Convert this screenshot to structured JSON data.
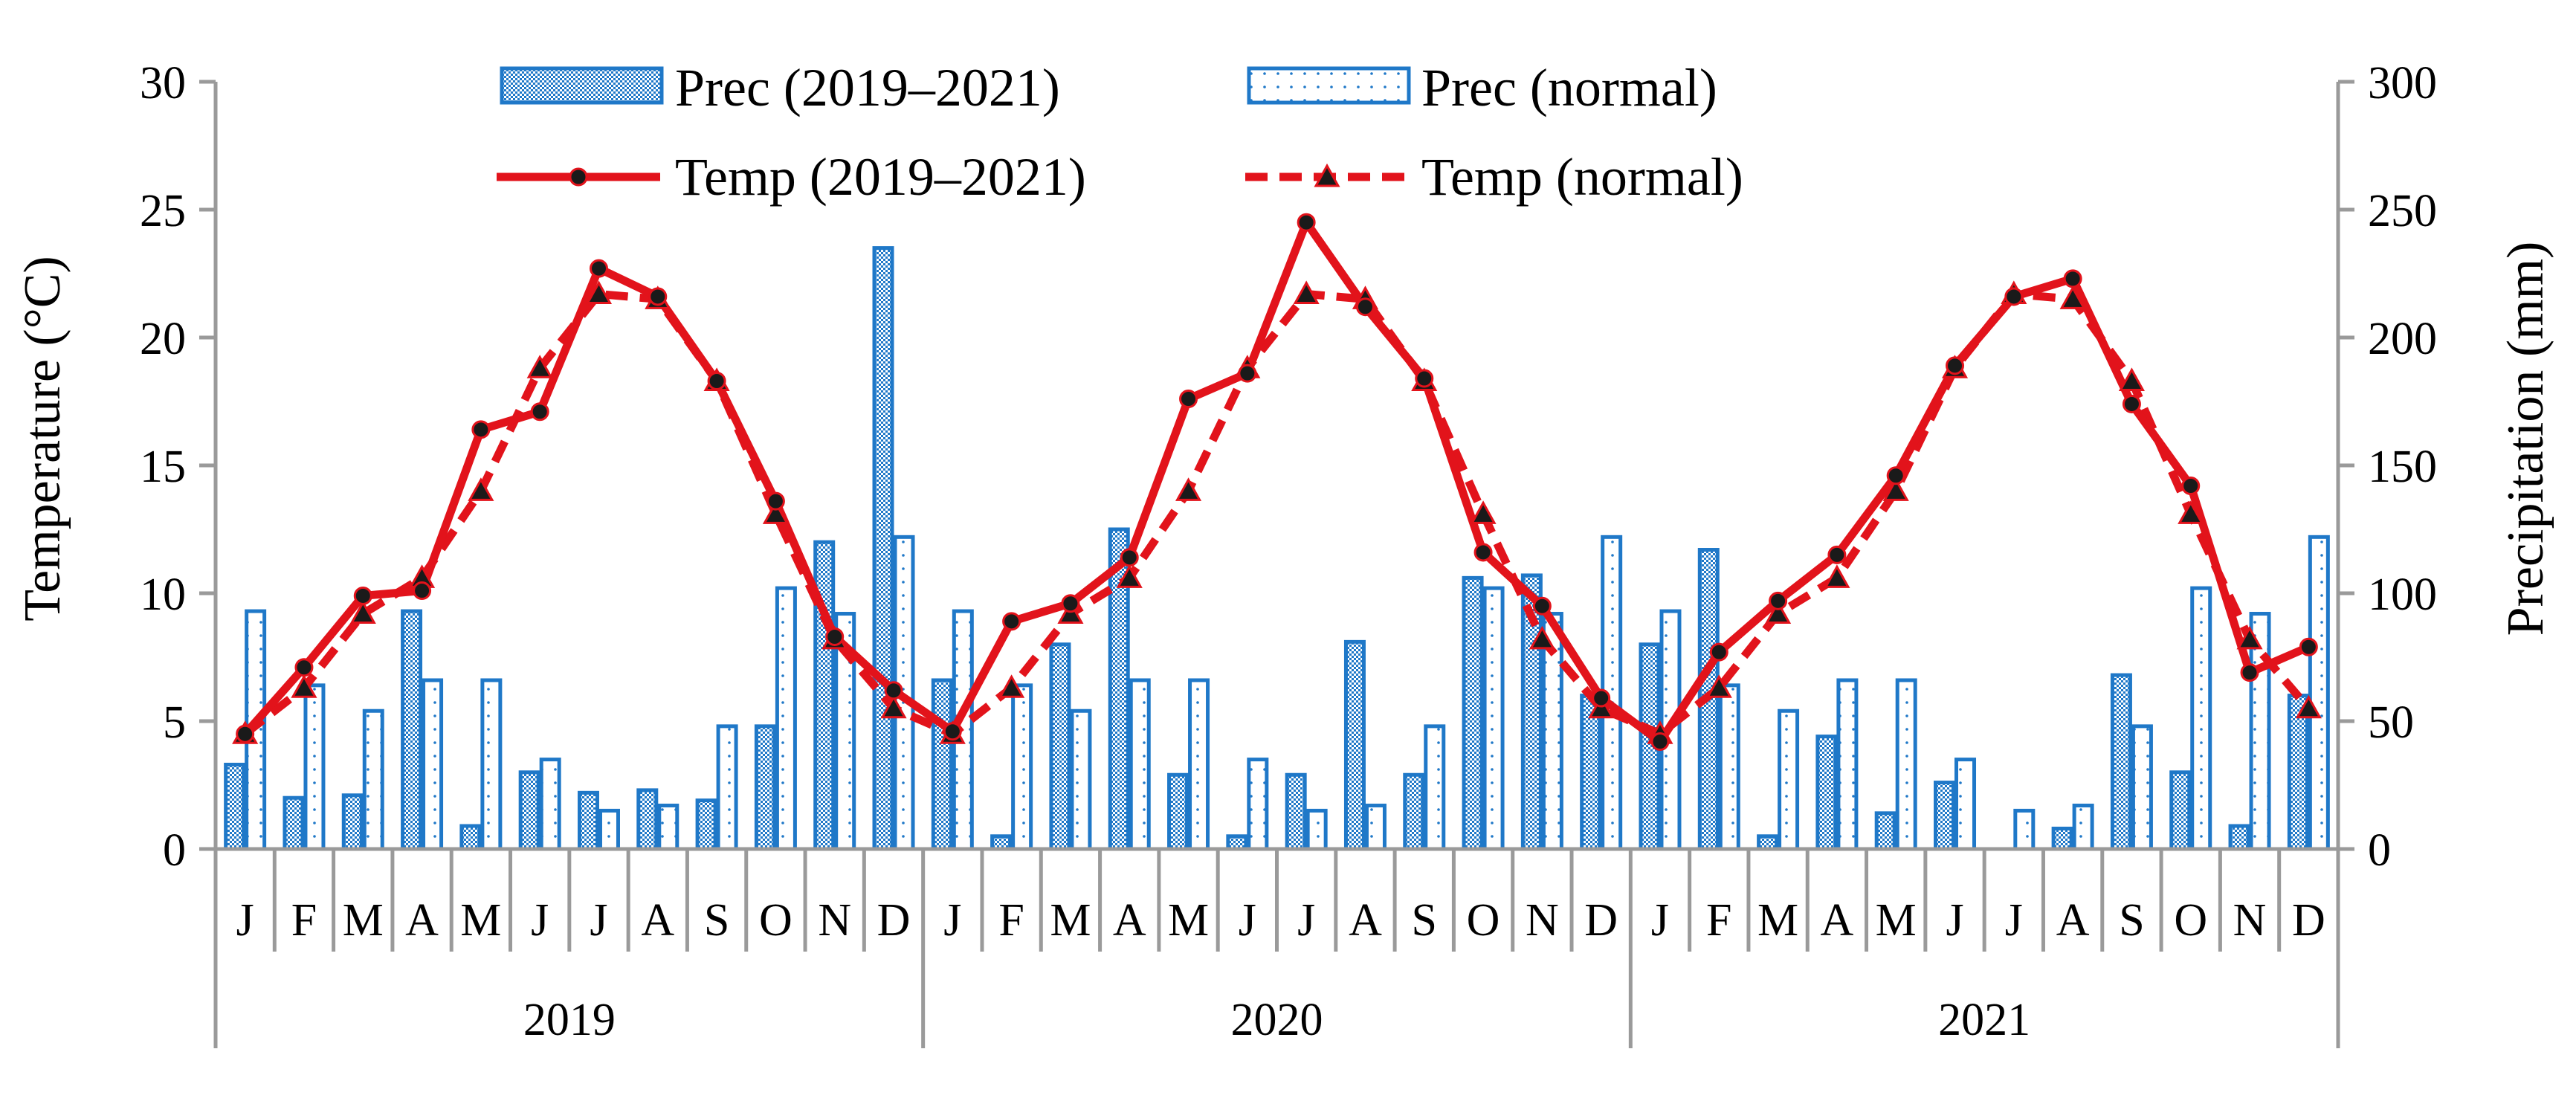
{
  "chart_data": {
    "type": "bar+line",
    "title": "",
    "ylabel_left": "Temperature (°C)",
    "ylabel_right": "Precipitation (mm)",
    "ylim_left": [
      0,
      30
    ],
    "ylim_right": [
      0,
      300
    ],
    "yticks_left": [
      "0",
      "5",
      "10",
      "15",
      "20",
      "25",
      "30"
    ],
    "yticks_right": [
      "0",
      "50",
      "100",
      "150",
      "200",
      "250",
      "300"
    ],
    "months": [
      "J",
      "F",
      "M",
      "A",
      "M",
      "J",
      "J",
      "A",
      "S",
      "O",
      "N",
      "D",
      "J",
      "F",
      "M",
      "A",
      "M",
      "J",
      "J",
      "A",
      "S",
      "O",
      "N",
      "D",
      "J",
      "F",
      "M",
      "A",
      "M",
      "J",
      "J",
      "A",
      "S",
      "O",
      "N",
      "D"
    ],
    "years": [
      "2019",
      "2020",
      "2021"
    ],
    "legend": {
      "prec_actual": "Prec (2019–2021)",
      "prec_normal": "Prec (normal)",
      "temp_actual": "Temp (2019–2021)",
      "temp_normal": "Temp (normal)"
    },
    "series": [
      {
        "name": "Prec (2019–2021)",
        "axis": "right",
        "kind": "bar",
        "values": [
          33,
          20,
          21,
          93,
          9,
          30,
          22,
          23,
          19,
          48,
          120,
          235,
          66,
          5,
          80,
          125,
          29,
          5,
          29,
          81,
          29,
          106,
          107,
          60,
          80,
          117,
          5,
          44,
          14,
          26,
          0,
          8,
          68,
          30,
          9,
          60
        ]
      },
      {
        "name": "Prec (normal)",
        "axis": "right",
        "kind": "bar",
        "values": [
          93,
          64,
          54,
          66,
          66,
          35,
          15,
          17,
          48,
          102,
          92,
          122,
          93,
          64,
          54,
          66,
          66,
          35,
          15,
          17,
          48,
          102,
          92,
          122,
          93,
          64,
          54,
          66,
          66,
          35,
          15,
          17,
          48,
          102,
          92,
          122
        ]
      },
      {
        "name": "Temp (2019–2021)",
        "axis": "left",
        "kind": "line",
        "values": [
          4.5,
          7.1,
          9.9,
          10.1,
          16.4,
          17.1,
          22.7,
          21.6,
          18.3,
          13.6,
          8.3,
          6.2,
          4.6,
          8.9,
          9.6,
          11.4,
          17.6,
          18.6,
          24.5,
          21.2,
          18.4,
          11.6,
          9.5,
          5.9,
          4.2,
          7.7,
          9.7,
          11.5,
          14.6,
          18.9,
          21.6,
          22.3,
          17.4,
          14.2,
          6.9,
          7.9
        ]
      },
      {
        "name": "Temp (normal)",
        "axis": "left",
        "kind": "line",
        "values": [
          4.5,
          6.3,
          9.2,
          10.6,
          14.0,
          18.8,
          21.7,
          21.5,
          18.3,
          13.1,
          8.2,
          5.5,
          4.5,
          6.3,
          9.2,
          10.6,
          14.0,
          18.8,
          21.7,
          21.5,
          18.3,
          13.1,
          8.2,
          5.5,
          4.5,
          6.3,
          9.2,
          10.6,
          14.0,
          18.8,
          21.7,
          21.5,
          18.3,
          13.1,
          8.2,
          5.5
        ]
      }
    ],
    "colors": {
      "bar_blue": "#1f78c8",
      "line_red": "#e2131b",
      "axis_gray": "#9a9a9a"
    }
  }
}
